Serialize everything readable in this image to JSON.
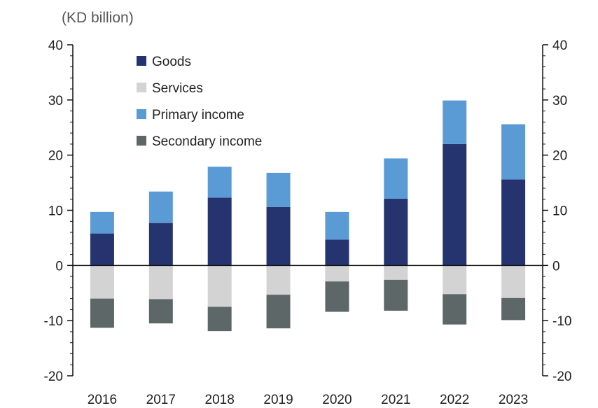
{
  "chart_data": {
    "type": "bar",
    "stacked": true,
    "unit_label": "(KD billion)",
    "categories": [
      "2016",
      "2017",
      "2018",
      "2019",
      "2020",
      "2021",
      "2022",
      "2023"
    ],
    "series": [
      {
        "name": "Goods",
        "color": "#25346f",
        "values": [
          5.8,
          7.7,
          12.3,
          10.6,
          4.7,
          12.1,
          22.0,
          15.6
        ]
      },
      {
        "name": "Services",
        "color": "#d3d3d3",
        "values": [
          -6.0,
          -6.1,
          -7.5,
          -5.3,
          -2.9,
          -2.6,
          -5.2,
          -5.9
        ]
      },
      {
        "name": "Primary income",
        "color": "#5b9bd5",
        "values": [
          3.9,
          5.7,
          5.6,
          6.2,
          5.0,
          7.3,
          7.9,
          10.0
        ]
      },
      {
        "name": "Secondary income",
        "color": "#5d6767",
        "values": [
          -5.3,
          -4.4,
          -4.4,
          -6.1,
          -5.5,
          -5.6,
          -5.5,
          -4.0
        ]
      }
    ],
    "ylim": [
      -20,
      40
    ],
    "yticks": [
      "-20",
      "-10",
      "0",
      "10",
      "20",
      "30",
      "40"
    ],
    "dual_y_axis": true,
    "grid": false,
    "legend_position": "top-left"
  }
}
